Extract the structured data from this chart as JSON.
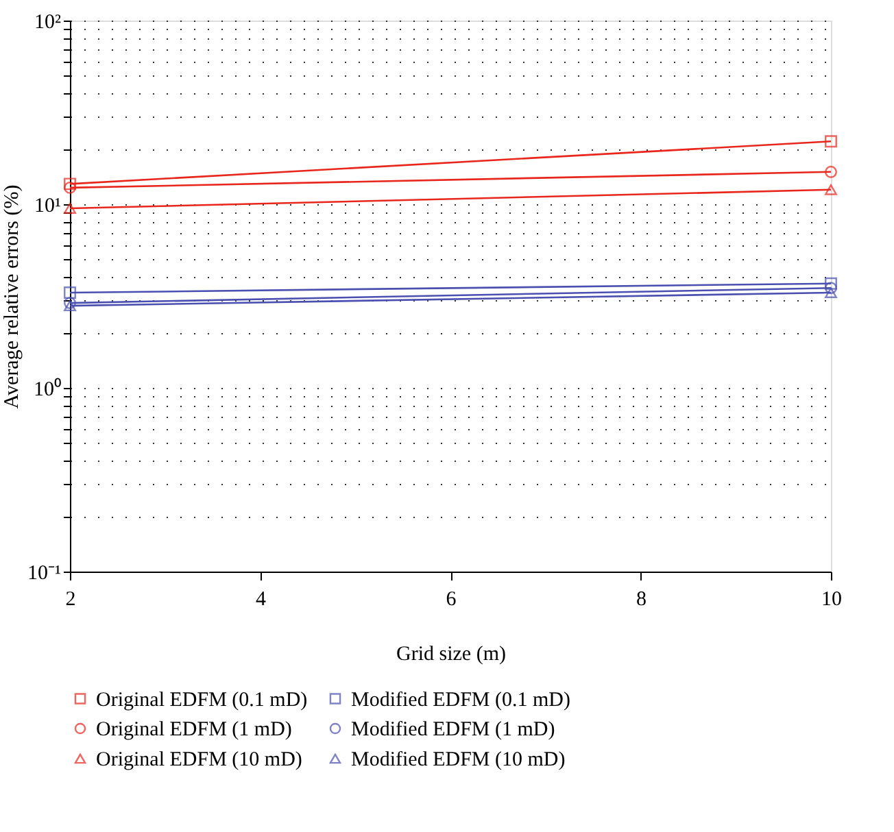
{
  "chart_data": {
    "type": "line",
    "xlabel": "Grid size (m)",
    "ylabel": "Average relative errors (%)",
    "x": [
      2,
      10
    ],
    "xlim": [
      2,
      10
    ],
    "xticks": [
      2,
      4,
      6,
      8,
      10
    ],
    "log": "y",
    "ylim": [
      0.1,
      100
    ],
    "yticks": [
      {
        "value": 0.1,
        "label": "10⁻¹"
      },
      {
        "value": 0.2,
        "label": null
      },
      {
        "value": 0.3,
        "label": null
      },
      {
        "value": 0.4,
        "label": null
      },
      {
        "value": 0.5,
        "label": null
      },
      {
        "value": 0.6,
        "label": null
      },
      {
        "value": 0.7,
        "label": null
      },
      {
        "value": 0.8,
        "label": null
      },
      {
        "value": 0.9,
        "label": null
      },
      {
        "value": 1,
        "label": "10⁰"
      },
      {
        "value": 2,
        "label": null
      },
      {
        "value": 3,
        "label": null
      },
      {
        "value": 4,
        "label": null
      },
      {
        "value": 5,
        "label": null
      },
      {
        "value": 6,
        "label": null
      },
      {
        "value": 7,
        "label": null
      },
      {
        "value": 8,
        "label": null
      },
      {
        "value": 9,
        "label": null
      },
      {
        "value": 10,
        "label": "10¹"
      },
      {
        "value": 20,
        "label": null
      },
      {
        "value": 30,
        "label": null
      },
      {
        "value": 40,
        "label": null
      },
      {
        "value": 50,
        "label": null
      },
      {
        "value": 60,
        "label": null
      },
      {
        "value": 70,
        "label": null
      },
      {
        "value": 80,
        "label": null
      },
      {
        "value": 90,
        "label": null
      },
      {
        "value": 100,
        "label": "10²"
      }
    ],
    "grid": "y",
    "legend": "bottom",
    "line_style": "solid",
    "series": [
      {
        "name": "Original EDFM (0.1 mD)",
        "color": "#e8261c",
        "marker": "square",
        "values": [
          12.9,
          22
        ]
      },
      {
        "name": "Modified EDFM (0.1 mD)",
        "color": "#4a4fb0",
        "marker": "square",
        "values": [
          3.3,
          3.7
        ]
      },
      {
        "name": "Original EDFM (1 mD)",
        "color": "#e8261c",
        "marker": "circle",
        "values": [
          12.3,
          15
        ]
      },
      {
        "name": "Modified EDFM (1 mD)",
        "color": "#4a4fb0",
        "marker": "circle",
        "values": [
          2.9,
          3.5
        ]
      },
      {
        "name": "Original EDFM (10 mD)",
        "color": "#e8261c",
        "marker": "triangle",
        "values": [
          9.5,
          12
        ]
      },
      {
        "name": "Modified EDFM (10 mD)",
        "color": "#4a4fb0",
        "marker": "triangle",
        "values": [
          2.8,
          3.3
        ]
      }
    ]
  }
}
